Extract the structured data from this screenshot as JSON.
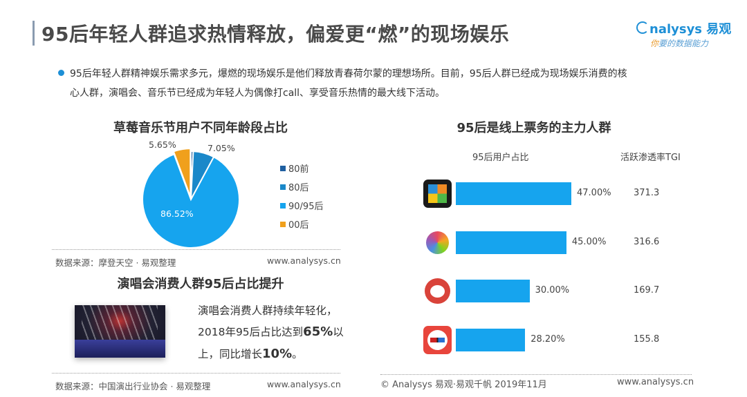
{
  "header": {
    "title": "95后年轻人群追求热情释放，偏爱更“燃”的现场娱乐",
    "logo_text": "nalysys 易观",
    "logo_slogan": "你要的数据能力",
    "logo_slogan_rest": "要的数据能力",
    "logo_slogan_first": "你"
  },
  "bullet": {
    "line1": "95后年轻人群精神娱乐需求多元，爆燃的现场娱乐是他们释放青春荷尔蒙的理想场所。目前，95后人群已经成为现场娱乐消费的核",
    "line2": "心人群，演唱会、音乐节已经成为年轻人为偶像打call、享受音乐热情的最大线下活动。"
  },
  "colors": {
    "accent": "#1d8fd6",
    "bar": "#16a4ee",
    "pie_80before": "#1f5fa0",
    "pie_80after": "#1a88c9",
    "pie_9095": "#16a4ee",
    "pie_00": "#f0a01c"
  },
  "chart_data": [
    {
      "type": "pie",
      "title": "草莓音乐节用户不同年龄段占比",
      "categories": [
        "80前",
        "80后",
        "90/95后",
        "00后"
      ],
      "values": [
        0.78,
        7.05,
        86.52,
        5.65
      ],
      "labels": [
        "",
        "7.05%",
        "86.52%",
        "5.65%"
      ],
      "legend": "right",
      "source": "数据来源：摩登天空 · 易观整理",
      "site": "www.analysys.cn"
    },
    {
      "type": "bar",
      "title": "95后是线上票务的主力人群",
      "bar_header": "95后用户占比",
      "tgi_header": "活跃渗透率TGI",
      "categories": [
        "app-1",
        "app-2",
        "app-3",
        "app-4"
      ],
      "values": [
        47.0,
        45.0,
        30.0,
        28.2
      ],
      "labels": [
        "47.00%",
        "45.00%",
        "30.00%",
        "28.20%"
      ],
      "tgi": [
        "371.3",
        "316.6",
        "169.7",
        "155.8"
      ],
      "icons": [
        "ticket-app-grid-icon",
        "ticket-app-peacock-icon",
        "maoyan-cat-icon",
        "taopiaopiao-glasses-icon"
      ],
      "xlim": [
        0,
        100
      ]
    }
  ],
  "concert": {
    "title": "演唱会消费人群95后占比提升",
    "line1": "演唱会消费人群持续年轻化，",
    "line2a": "2018年95后占比达到",
    "line2b": "65%",
    "line2c": "以",
    "line3a": "上，同比增长",
    "line3b": "10%",
    "line3c": "。",
    "source": "数据来源：中国演出行业协会 · 易观整理",
    "site": "www.analysys.cn"
  },
  "footer": {
    "copyright": "© Analysys 易观·易观千帆 2019年11月",
    "site": "www.analysys.cn"
  }
}
